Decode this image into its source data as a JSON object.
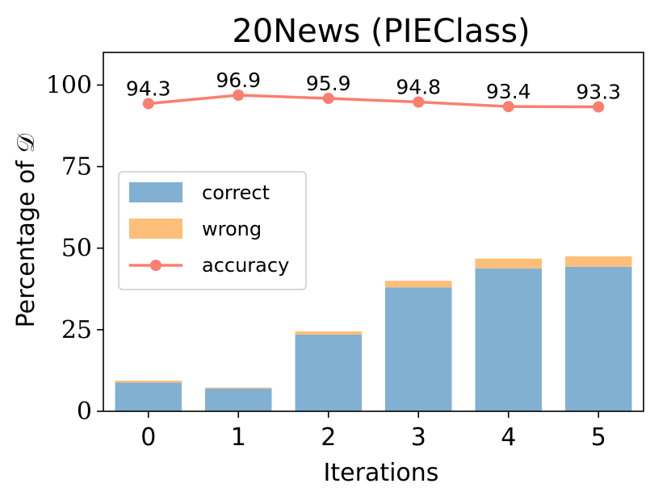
{
  "chart_data": {
    "type": "bar",
    "title": "20News (PIEClass)",
    "xlabel": "Iterations",
    "ylabel": "Percentage of 𝒟",
    "categories": [
      "0",
      "1",
      "2",
      "3",
      "4",
      "5"
    ],
    "ylim": [
      0,
      110
    ],
    "yticks": [
      0,
      25,
      50,
      75,
      100
    ],
    "stacked": true,
    "series": [
      {
        "name": "correct",
        "kind": "bar",
        "color": "#82b0d2",
        "values": [
          8.8,
          7.0,
          23.5,
          38.0,
          43.8,
          44.3
        ]
      },
      {
        "name": "wrong",
        "kind": "bar",
        "color": "#ffbe7a",
        "values": [
          0.6,
          0.3,
          1.0,
          2.0,
          3.0,
          3.2
        ]
      },
      {
        "name": "accuracy",
        "kind": "line",
        "color": "#fa7f6f",
        "values": [
          94.3,
          96.9,
          95.9,
          94.8,
          93.4,
          93.3
        ],
        "labels": [
          "94.3",
          "96.9",
          "95.9",
          "94.8",
          "93.4",
          "93.3"
        ]
      }
    ],
    "legend": {
      "position": "center-left",
      "entries": [
        "correct",
        "wrong",
        "accuracy"
      ]
    },
    "grid": false
  }
}
